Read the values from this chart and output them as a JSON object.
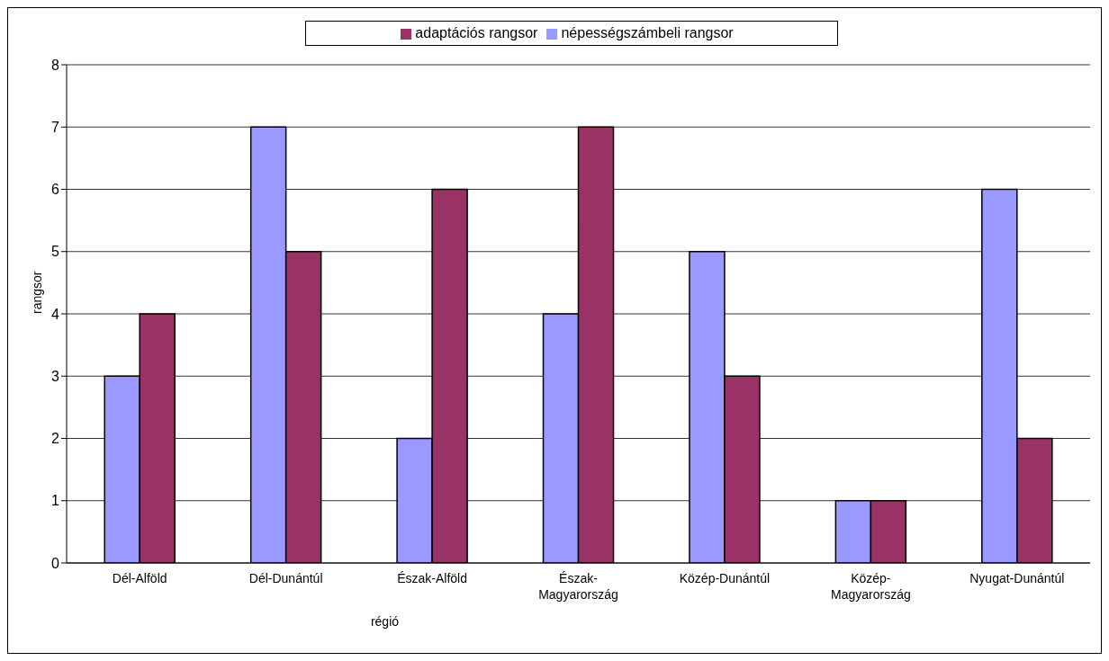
{
  "chart_data": {
    "type": "bar",
    "xlabel": "régió",
    "ylabel": "rangsor",
    "categories": [
      "Dél-Alföld",
      "Dél-Dunántúl",
      "Észak-Alföld",
      "Észak-Magyarország",
      "Közép-Dunántúl",
      "Közép-Magyarország",
      "Nyugat-Dunántúl"
    ],
    "series": [
      {
        "name": "népességszámbeli rangsor",
        "color": "#9999ff",
        "values": [
          3,
          7,
          2,
          4,
          5,
          1,
          6
        ]
      },
      {
        "name": "adaptációs rangsor",
        "color": "#993366",
        "values": [
          4,
          5,
          6,
          7,
          3,
          1,
          2
        ]
      }
    ],
    "ylim": [
      0,
      8
    ],
    "yticks": [
      0,
      1,
      2,
      3,
      4,
      5,
      6,
      7,
      8
    ],
    "grid": "y",
    "legend": "top"
  }
}
